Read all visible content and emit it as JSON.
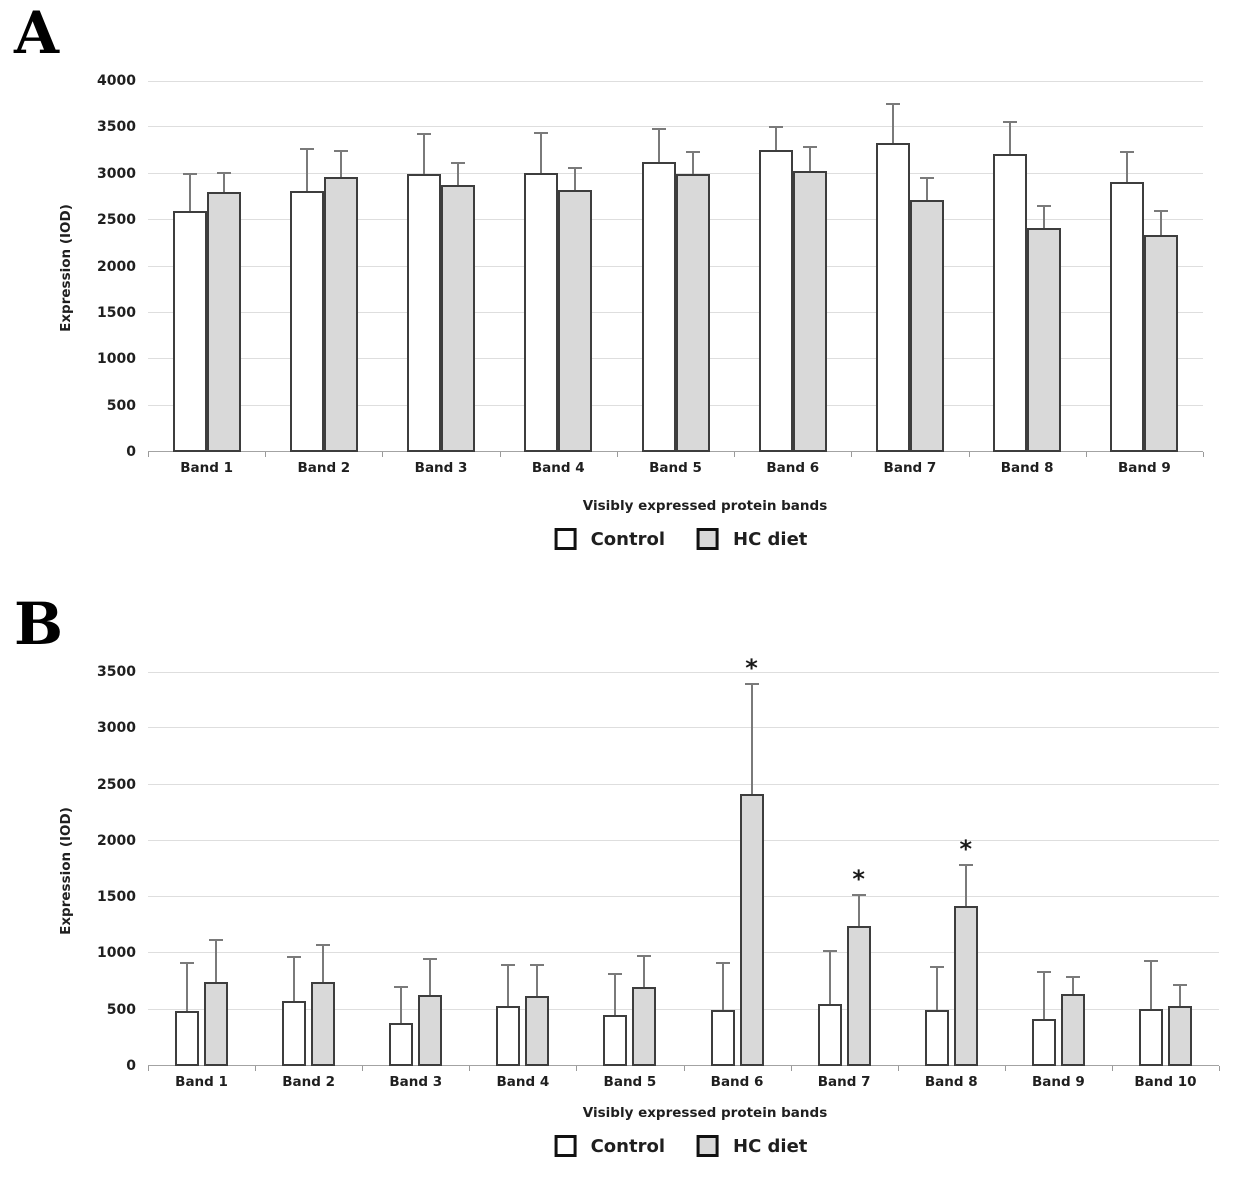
{
  "figure": {
    "panel_a_label": "A",
    "panel_b_label": "B"
  },
  "colors": {
    "control_fill": "#ffffff",
    "hc_diet_fill": "#d9d9d9",
    "bar_border": "#3d3d3d",
    "error_bar": "#7a7a7a",
    "gridline": "#dedede"
  },
  "chart_data": [
    {
      "type": "bar",
      "panel": "A",
      "xlabel": "Visibly expressed protein bands",
      "ylabel": "Expression (IOD)",
      "ylim": [
        0,
        4000
      ],
      "ytick_step": 500,
      "ytick_labels": [
        "0",
        "500",
        "1000",
        "1500",
        "2000",
        "2500",
        "3000",
        "3500",
        "4000"
      ],
      "grid": true,
      "legend_position": "bottom",
      "categories": [
        "Band 1",
        "Band 2",
        "Band 3",
        "Band 4",
        "Band 5",
        "Band 6",
        "Band 7",
        "Band 8",
        "Band 9"
      ],
      "series": [
        {
          "name": "Control",
          "values": [
            2600,
            2810,
            3000,
            3010,
            3130,
            3260,
            3330,
            3210,
            2910
          ],
          "errors_plus": [
            410,
            470,
            440,
            440,
            360,
            260,
            430,
            360,
            330
          ]
        },
        {
          "name": "HC diet",
          "values": [
            2800,
            2970,
            2880,
            2820,
            3000,
            3030,
            2720,
            2410,
            2340
          ],
          "errors_plus": [
            220,
            290,
            250,
            250,
            250,
            270,
            240,
            250,
            270
          ]
        }
      ],
      "significance": [
        null,
        null,
        null,
        null,
        null,
        null,
        null,
        null,
        null
      ]
    },
    {
      "type": "bar",
      "panel": "B",
      "xlabel": "Visibly expressed protein bands",
      "ylabel": "Expression (IOD)",
      "ylim": [
        0,
        3500
      ],
      "ytick_step": 500,
      "ytick_labels": [
        "0",
        "500",
        "1000",
        "1500",
        "2000",
        "2500",
        "3000",
        "3500"
      ],
      "grid": true,
      "legend_position": "bottom",
      "categories": [
        "Band 1",
        "Band 2",
        "Band 3",
        "Band 4",
        "Band 5",
        "Band 6",
        "Band 7",
        "Band 8",
        "Band 9",
        "Band 10"
      ],
      "series": [
        {
          "name": "Control",
          "values": [
            490,
            575,
            385,
            535,
            455,
            500,
            550,
            495,
            420,
            510
          ],
          "errors_plus": [
            435,
            405,
            325,
            370,
            370,
            420,
            480,
            395,
            425,
            430
          ]
        },
        {
          "name": "HC diet",
          "values": [
            745,
            745,
            630,
            620,
            700,
            2420,
            1240,
            1420,
            640,
            530
          ],
          "errors_plus": [
            385,
            335,
            330,
            290,
            285,
            980,
            290,
            370,
            160,
            200
          ]
        }
      ],
      "significance": [
        null,
        null,
        null,
        null,
        null,
        "*",
        "*",
        "*",
        null,
        null
      ]
    }
  ]
}
